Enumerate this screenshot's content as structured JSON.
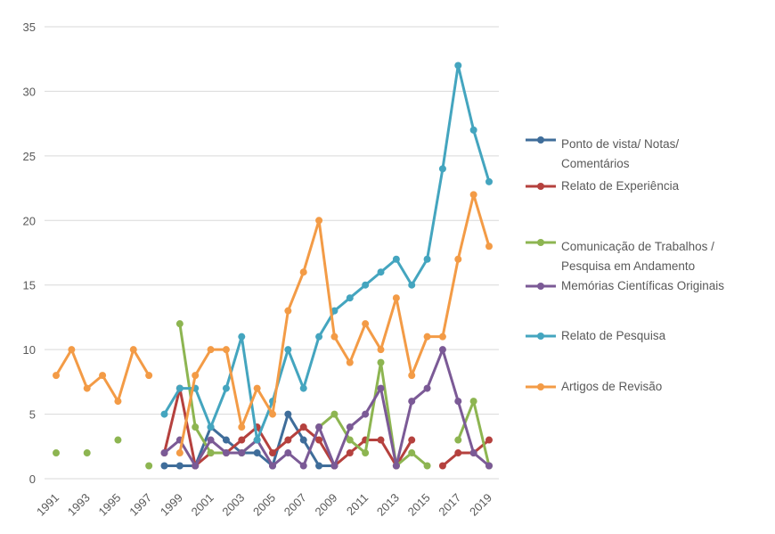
{
  "chart_data": {
    "type": "line",
    "categories": [
      "1991",
      null,
      "1993",
      null,
      "1995",
      null,
      "1997",
      null,
      "1999",
      null,
      "2001",
      null,
      "2003",
      null,
      "2005",
      null,
      "2007",
      null,
      "2009",
      null,
      "2011",
      null,
      "2013",
      null,
      "2015",
      null,
      "2017",
      null,
      "2019"
    ],
    "ylim": [
      0,
      35
    ],
    "yticks": [
      0,
      5,
      10,
      15,
      20,
      25,
      30,
      35
    ],
    "grid": true,
    "series": [
      {
        "name": "Ponto de vista/ Notas/ Comentários",
        "color": "#3f6d9a",
        "values": [
          null,
          null,
          null,
          null,
          null,
          null,
          null,
          1,
          1,
          1,
          4,
          3,
          2,
          2,
          1,
          5,
          3,
          1,
          1,
          null,
          null,
          null,
          null,
          null,
          null,
          null,
          null,
          null,
          null
        ]
      },
      {
        "name": "Relato de Experiência",
        "color": "#b5413e",
        "values": [
          null,
          null,
          null,
          null,
          null,
          null,
          null,
          2,
          7,
          1,
          2,
          2,
          3,
          4,
          2,
          3,
          4,
          3,
          1,
          2,
          3,
          3,
          1,
          3,
          null,
          1,
          2,
          2,
          3
        ]
      },
      {
        "name": "Comunicação de Trabalhos / Pesquisa em Andamento",
        "color": "#8db551",
        "values": [
          2,
          null,
          2,
          null,
          3,
          null,
          1,
          null,
          12,
          4,
          2,
          2,
          2,
          3,
          null,
          null,
          null,
          4,
          5,
          3,
          2,
          9,
          1,
          2,
          1,
          null,
          3,
          6,
          1
        ]
      },
      {
        "name": "Memórias Científicas Originais",
        "color": "#7b5a96",
        "values": [
          null,
          null,
          null,
          null,
          null,
          null,
          null,
          2,
          3,
          1,
          3,
          2,
          2,
          3,
          1,
          2,
          1,
          4,
          1,
          4,
          5,
          7,
          1,
          6,
          7,
          10,
          6,
          2,
          1
        ]
      },
      {
        "name": "Relato de Pesquisa",
        "color": "#44a5bf",
        "values": [
          null,
          null,
          null,
          null,
          null,
          null,
          null,
          5,
          7,
          7,
          4,
          7,
          11,
          3,
          6,
          10,
          7,
          11,
          13,
          14,
          15,
          16,
          17,
          15,
          17,
          24,
          32,
          27,
          23
        ]
      },
      {
        "name": "Artigos de Revisão",
        "color": "#f39b46",
        "values": [
          8,
          10,
          7,
          8,
          6,
          10,
          8,
          null,
          2,
          8,
          10,
          10,
          4,
          7,
          5,
          13,
          16,
          20,
          11,
          9,
          12,
          10,
          14,
          8,
          11,
          11,
          17,
          22,
          18
        ]
      }
    ]
  }
}
